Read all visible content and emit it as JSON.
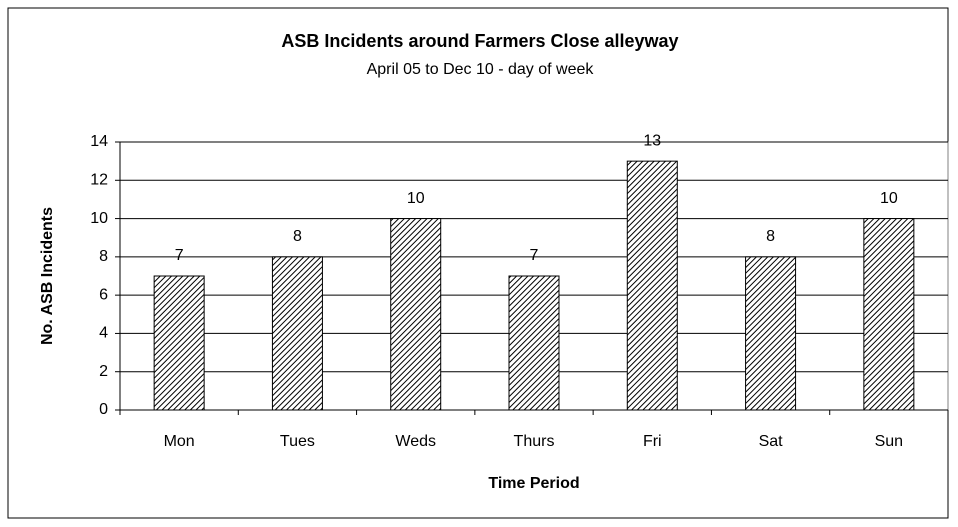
{
  "chart_data": {
    "type": "bar",
    "title": "ASB Incidents around Farmers Close alleyway",
    "subtitle": "April 05 to Dec 10 - day of week",
    "x_label": "Time Period",
    "y_label": "No. ASB Incidents",
    "categories": [
      "Mon",
      "Tues",
      "Weds",
      "Thurs",
      "Fri",
      "Sat",
      "Sun"
    ],
    "values": [
      7,
      8,
      10,
      7,
      13,
      8,
      10
    ],
    "color": "#000000",
    "ylim": [
      0,
      14
    ],
    "yticks": [
      0,
      2,
      4,
      6,
      8,
      10,
      12,
      14
    ],
    "grid": true
  }
}
